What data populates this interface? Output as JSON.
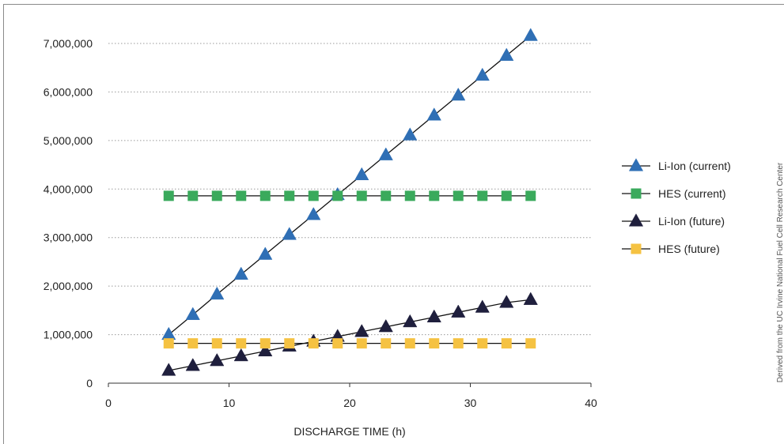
{
  "chart_data": {
    "type": "line",
    "xlabel": "DISCHARGE TIME (h)",
    "ylabel": "",
    "xlim": [
      0,
      40
    ],
    "ylim": [
      0,
      7000000
    ],
    "x_ticks": [
      "0",
      "10",
      "20",
      "30",
      "40"
    ],
    "y_ticks": [
      "0",
      "1,000,000",
      "2,000,000",
      "3,000,000",
      "4,000,000",
      "5,000,000",
      "6,000,000",
      "7,000,000"
    ],
    "grid": "horizontal dotted",
    "legend_position": "right",
    "x": [
      5,
      7,
      9,
      11,
      13,
      15,
      17,
      19,
      21,
      23,
      25,
      27,
      29,
      31,
      33,
      35
    ],
    "series": [
      {
        "name": "Li-Ion (current)",
        "marker": "triangle",
        "color": "#2f6fb5",
        "values": [
          1000000,
          1410000,
          1830000,
          2240000,
          2650000,
          3060000,
          3470000,
          3880000,
          4290000,
          4700000,
          5110000,
          5520000,
          5930000,
          6340000,
          6750000,
          7160000
        ]
      },
      {
        "name": "HES (current)",
        "marker": "square",
        "color": "#3aaa5c",
        "values": [
          3860000,
          3860000,
          3860000,
          3860000,
          3860000,
          3860000,
          3860000,
          3860000,
          3860000,
          3860000,
          3860000,
          3860000,
          3860000,
          3860000,
          3860000,
          3860000
        ]
      },
      {
        "name": "Li-Ion (future)",
        "marker": "triangle",
        "color": "#1f1f3d",
        "values": [
          260000,
          360000,
          460000,
          560000,
          660000,
          760000,
          860000,
          960000,
          1060000,
          1160000,
          1260000,
          1360000,
          1460000,
          1560000,
          1660000,
          1720000
        ]
      },
      {
        "name": "HES (future)",
        "marker": "square",
        "color": "#f5c242",
        "values": [
          820000,
          820000,
          820000,
          820000,
          820000,
          820000,
          820000,
          820000,
          820000,
          820000,
          820000,
          820000,
          820000,
          820000,
          820000,
          820000
        ]
      }
    ]
  },
  "source_note": "Derived from the UC Irvine National Fuel Cell Research Center"
}
